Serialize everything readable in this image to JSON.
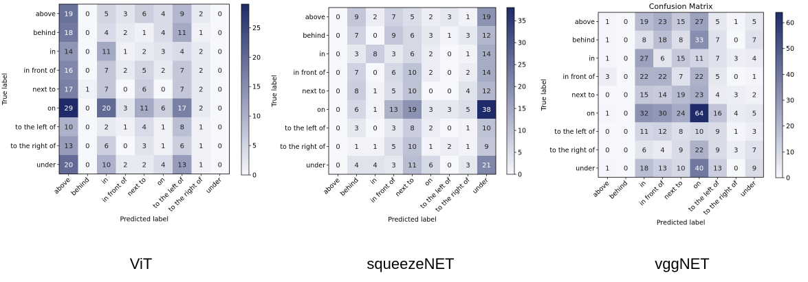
{
  "chart_data": [
    {
      "type": "heatmap",
      "title": "",
      "caption": "ViT",
      "xlabel": "Predicted label",
      "ylabel": "True label",
      "categories": [
        "above",
        "behind",
        "in",
        "in front of",
        "next to",
        "on",
        "to the left of",
        "to the right of",
        "under"
      ],
      "matrix": [
        [
          19,
          0,
          5,
          3,
          6,
          4,
          9,
          2,
          0
        ],
        [
          18,
          0,
          4,
          2,
          1,
          4,
          11,
          1,
          0
        ],
        [
          14,
          0,
          11,
          1,
          2,
          3,
          4,
          2,
          0
        ],
        [
          16,
          0,
          7,
          2,
          5,
          2,
          7,
          2,
          0
        ],
        [
          17,
          1,
          7,
          0,
          6,
          0,
          7,
          2,
          0
        ],
        [
          29,
          0,
          20,
          3,
          11,
          6,
          17,
          2,
          0
        ],
        [
          10,
          0,
          2,
          1,
          4,
          1,
          8,
          1,
          0
        ],
        [
          13,
          0,
          6,
          0,
          3,
          1,
          6,
          1,
          0
        ],
        [
          20,
          0,
          10,
          2,
          2,
          4,
          13,
          1,
          0
        ]
      ],
      "colorbar_range": [
        0,
        29
      ],
      "colorbar_ticks": [
        0,
        5,
        10,
        15,
        20,
        25
      ]
    },
    {
      "type": "heatmap",
      "title": "",
      "caption": "squeezeNET",
      "xlabel": "Predicted label",
      "ylabel": "True label",
      "categories": [
        "above",
        "behind",
        "in",
        "in front of",
        "next to",
        "on",
        "to the left of",
        "to the right of",
        "under"
      ],
      "matrix": [
        [
          0,
          9,
          2,
          7,
          5,
          2,
          3,
          1,
          19
        ],
        [
          0,
          7,
          0,
          9,
          6,
          3,
          1,
          3,
          12
        ],
        [
          0,
          3,
          8,
          3,
          6,
          2,
          0,
          1,
          14
        ],
        [
          0,
          7,
          0,
          6,
          10,
          2,
          0,
          2,
          14
        ],
        [
          0,
          8,
          1,
          5,
          10,
          0,
          0,
          4,
          12
        ],
        [
          0,
          6,
          1,
          13,
          19,
          3,
          3,
          5,
          38
        ],
        [
          0,
          3,
          0,
          3,
          8,
          2,
          0,
          1,
          10
        ],
        [
          0,
          1,
          1,
          5,
          10,
          1,
          2,
          1,
          9
        ],
        [
          0,
          4,
          4,
          3,
          11,
          6,
          0,
          3,
          21
        ]
      ],
      "colorbar_range": [
        0,
        38
      ],
      "colorbar_ticks": [
        0,
        5,
        10,
        15,
        20,
        25,
        30,
        35
      ]
    },
    {
      "type": "heatmap",
      "title": "Confusion Matrix",
      "caption": "vggNET",
      "xlabel": "Predicted label",
      "ylabel": "True label",
      "categories": [
        "above",
        "behind",
        "in",
        "in front of",
        "next to",
        "on",
        "to the left of",
        "to the right of",
        "under"
      ],
      "matrix": [
        [
          1,
          0,
          19,
          23,
          15,
          27,
          5,
          1,
          5
        ],
        [
          1,
          0,
          8,
          18,
          8,
          33,
          7,
          0,
          7
        ],
        [
          1,
          0,
          27,
          6,
          15,
          11,
          7,
          3,
          4
        ],
        [
          3,
          0,
          22,
          22,
          7,
          22,
          5,
          0,
          1
        ],
        [
          0,
          0,
          15,
          14,
          19,
          23,
          4,
          3,
          2
        ],
        [
          1,
          0,
          32,
          30,
          24,
          64,
          16,
          4,
          5
        ],
        [
          0,
          0,
          11,
          12,
          8,
          10,
          9,
          1,
          3
        ],
        [
          0,
          0,
          6,
          4,
          9,
          22,
          9,
          3,
          7
        ],
        [
          1,
          0,
          18,
          13,
          10,
          40,
          13,
          0,
          9
        ]
      ],
      "colorbar_range": [
        0,
        64
      ],
      "colorbar_ticks": [
        0,
        10,
        20,
        30,
        40,
        50,
        60
      ]
    }
  ],
  "colors": {
    "low": "#f7f8fc",
    "high": "#1f2b68"
  }
}
